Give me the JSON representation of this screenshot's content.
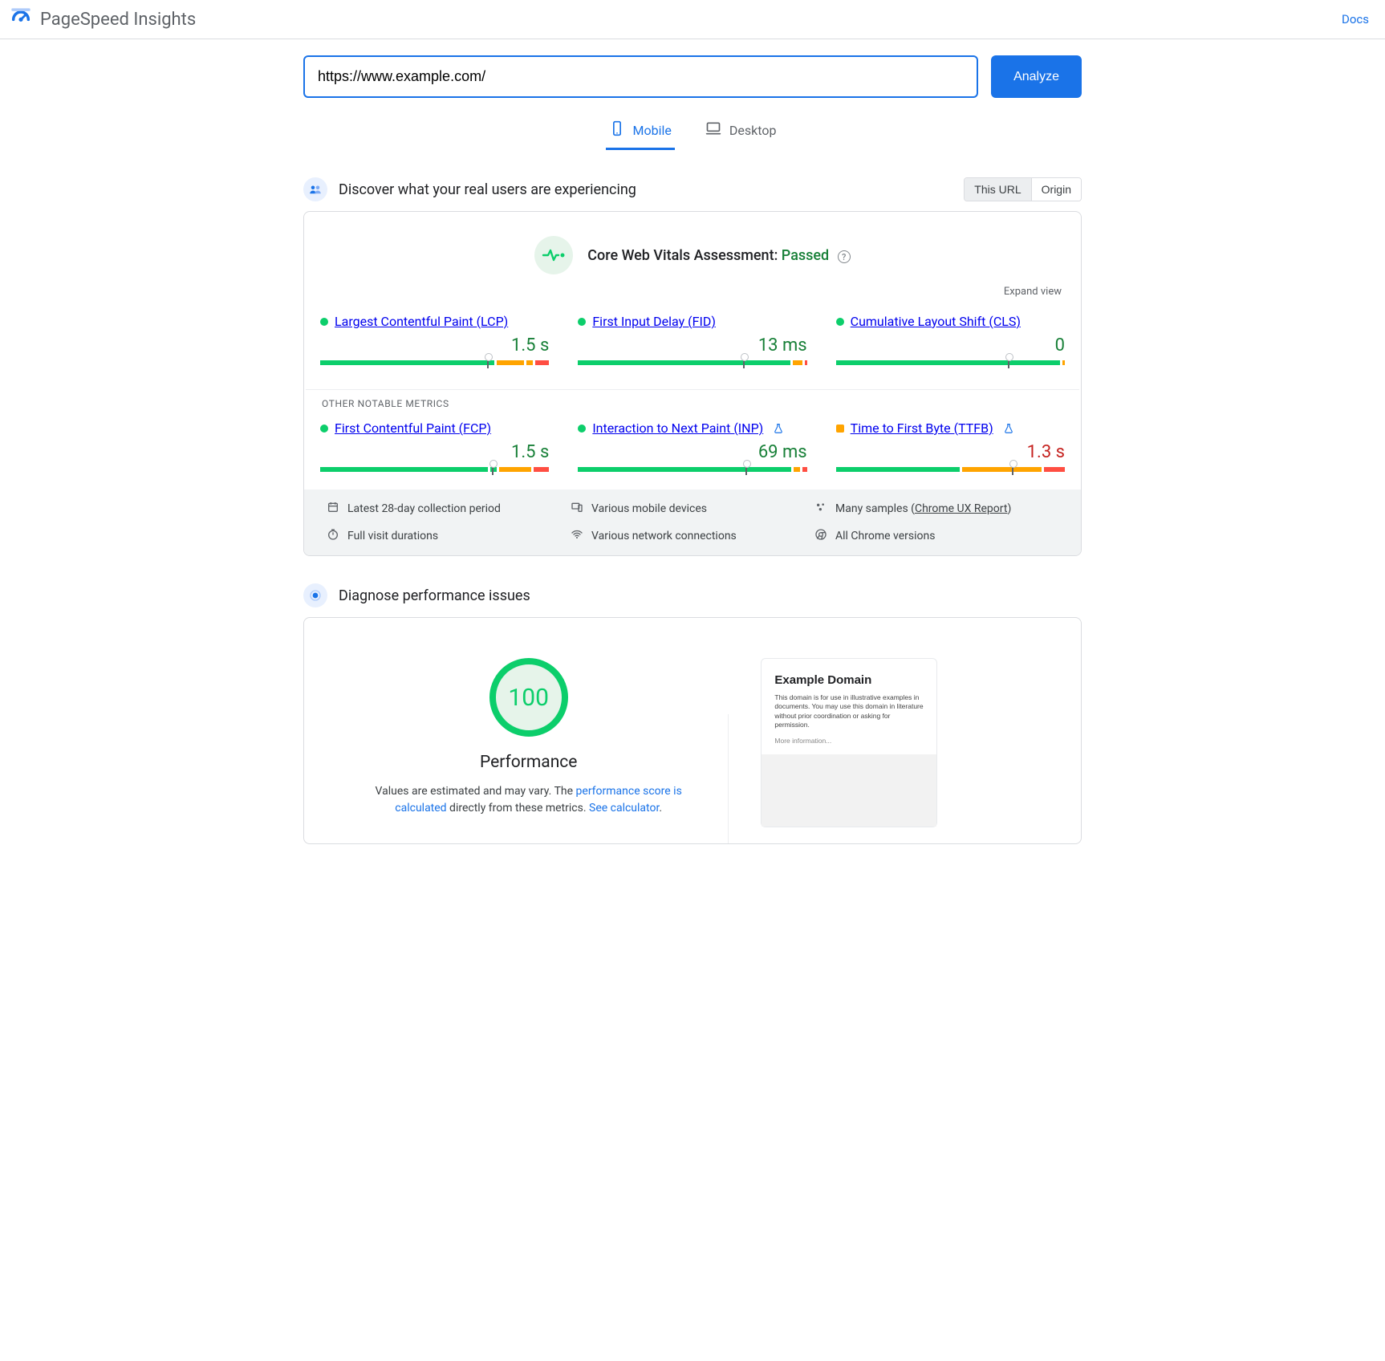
{
  "header": {
    "title": "PageSpeed Insights",
    "docs_label": "Docs"
  },
  "url_bar": {
    "value": "https://www.example.com/",
    "analyze_label": "Analyze"
  },
  "tabs": {
    "mobile": "Mobile",
    "desktop": "Desktop",
    "active": "mobile"
  },
  "colors": {
    "accent": "#1a73e8",
    "good": "#0cce6b",
    "good_dark": "#188038",
    "warn": "#ffa400",
    "bad": "#ff4e42",
    "grey": "#5f6368"
  },
  "field_data": {
    "section_title": "Discover what your real users are experiencing",
    "toggle": {
      "this_url": "This URL",
      "origin": "Origin",
      "active": "this_url"
    },
    "assessment_label": "Core Web Vitals Assessment: ",
    "assessment_status": "Passed",
    "expand_label": "Expand view",
    "other_heading": "OTHER NOTABLE METRICS",
    "metrics": {
      "lcp": {
        "name": "Largest Contentful Paint (LCP)",
        "value": "1.5 s",
        "status": "good",
        "status_color": "#0cce6b",
        "value_color": "#188038",
        "experimental": false,
        "segments": [
          {
            "color": "#0cce6b",
            "pct": 76
          },
          {
            "color": "#ffa400",
            "pct": 12
          },
          {
            "color": "#ffa400",
            "pct": 3
          },
          {
            "color": "#ff4e42",
            "pct": 6
          }
        ],
        "marker_pct": 73
      },
      "fid": {
        "name": "First Input Delay (FID)",
        "value": "13 ms",
        "status": "good",
        "status_color": "#0cce6b",
        "value_color": "#188038",
        "experimental": false,
        "segments": [
          {
            "color": "#0cce6b",
            "pct": 93
          },
          {
            "color": "#ffa400",
            "pct": 4
          },
          {
            "color": "#ff4e42",
            "pct": 1
          }
        ],
        "marker_pct": 72
      },
      "cls": {
        "name": "Cumulative Layout Shift (CLS)",
        "value": "0",
        "status": "good",
        "status_color": "#0cce6b",
        "value_color": "#188038",
        "experimental": false,
        "segments": [
          {
            "color": "#0cce6b",
            "pct": 98
          },
          {
            "color": "#ffa400",
            "pct": 1
          }
        ],
        "marker_pct": 75
      },
      "fcp": {
        "name": "First Contentful Paint (FCP)",
        "value": "1.5 s",
        "status": "good",
        "status_color": "#0cce6b",
        "value_color": "#188038",
        "experimental": false,
        "segments": [
          {
            "color": "#0cce6b",
            "pct": 74
          },
          {
            "color": "#0cce6b",
            "pct": 3
          },
          {
            "color": "#ffa400",
            "pct": 14
          },
          {
            "color": "#ff4e42",
            "pct": 7
          }
        ],
        "marker_pct": 75
      },
      "inp": {
        "name": "Interaction to Next Paint (INP)",
        "value": "69 ms",
        "status": "good",
        "status_color": "#0cce6b",
        "value_color": "#188038",
        "experimental": true,
        "segments": [
          {
            "color": "#0cce6b",
            "pct": 94
          },
          {
            "color": "#ffa400",
            "pct": 3
          },
          {
            "color": "#ff4e42",
            "pct": 2
          }
        ],
        "marker_pct": 73
      },
      "ttfb": {
        "name": "Time to First Byte (TTFB)",
        "value": "1.3 s",
        "status": "warn",
        "status_color": "#ffa400",
        "value_color": "#c5221f",
        "experimental": true,
        "segments": [
          {
            "color": "#0cce6b",
            "pct": 54
          },
          {
            "color": "#ffa400",
            "pct": 35
          },
          {
            "color": "#ff4e42",
            "pct": 9
          }
        ],
        "marker_pct": 77
      }
    },
    "info": {
      "period": "Latest 28-day collection period",
      "devices": "Various mobile devices",
      "samples_prefix": "Many samples (",
      "samples_link": "Chrome UX Report",
      "samples_suffix": ")",
      "durations": "Full visit durations",
      "network": "Various network connections",
      "versions": "All Chrome versions"
    }
  },
  "lab": {
    "section_title": "Diagnose performance issues",
    "score": "100",
    "score_color": "#0cce6b",
    "score_bg": "#e6f4ea",
    "score_title": "Performance",
    "note_prefix": "Values are estimated and may vary. The ",
    "note_link1": "performance score is calculated",
    "note_mid": " directly from these metrics. ",
    "note_link2": "See calculator",
    "note_suffix": ".",
    "preview": {
      "heading": "Example Domain",
      "body": "This domain is for use in illustrative examples in documents. You may use this domain in literature without prior coordination or asking for permission.",
      "more": "More information..."
    }
  }
}
